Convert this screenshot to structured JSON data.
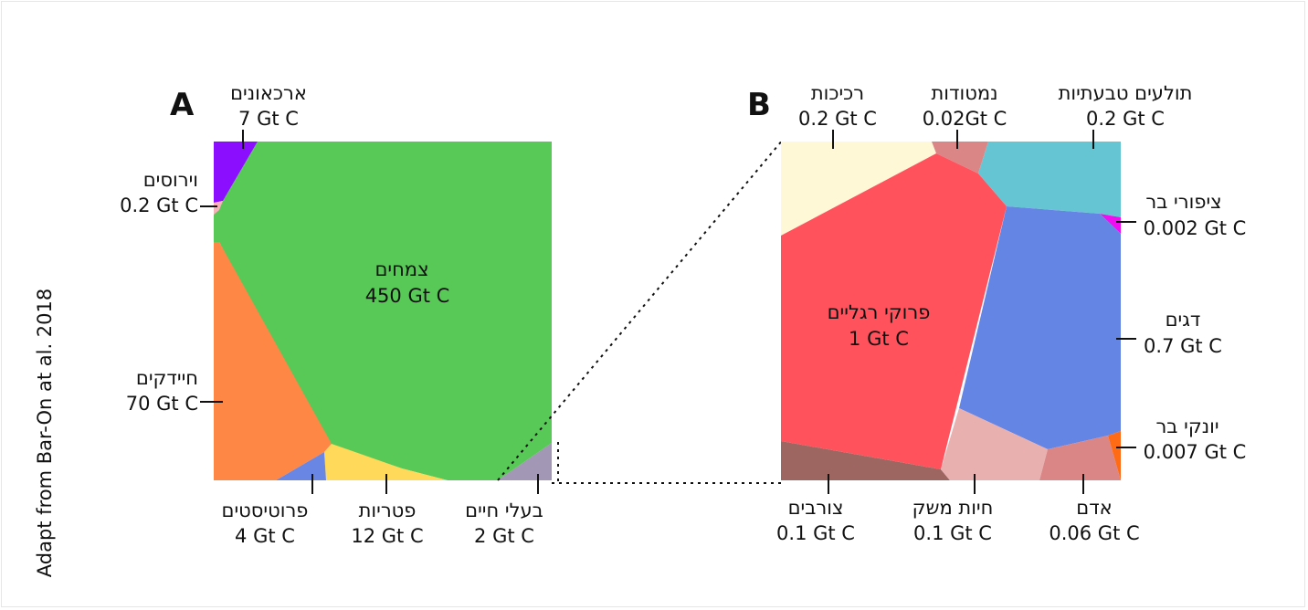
{
  "credit": "Adapt from Bar-On at al. 2018",
  "panel_a": {
    "letter": "A",
    "regions": [
      {
        "name": "צמחים",
        "value": "450 Gt C",
        "color": "#58c957"
      },
      {
        "name": "חיידקים",
        "value": "70 Gt C",
        "color": "#fe8745"
      },
      {
        "name": "פטריות",
        "value": "12 Gt C",
        "color": "#ffd95a"
      },
      {
        "name": "ארכאונים",
        "value": "7 Gt C",
        "color": "#8b0eff"
      },
      {
        "name": "פרוטיסטים",
        "value": "4 Gt C",
        "color": "#6a86e4"
      },
      {
        "name": "בעלי חיים",
        "value": "2 Gt C",
        "color": "#a297b4"
      },
      {
        "name": "וירוסים",
        "value": "0.2 Gt C",
        "color": "#f6b3b9"
      }
    ]
  },
  "panel_b": {
    "letter": "B",
    "regions": [
      {
        "name": "פרוקי רגליים",
        "value": "1 Gt C",
        "color": "#ff525d"
      },
      {
        "name": "דגים",
        "value": "0.7 Gt C",
        "color": "#6585e5"
      },
      {
        "name": "רכיכות",
        "value": "0.2 Gt C",
        "color": "#fff8d6"
      },
      {
        "name": "תולעים טבעתיות",
        "value": "0.2 Gt C",
        "color": "#66c5d3"
      },
      {
        "name": "צורבים",
        "value": "0.1 Gt C",
        "color": "#9e6661"
      },
      {
        "name": "חיות משק",
        "value": "0.1 Gt C",
        "color": "#e9b0b0"
      },
      {
        "name": "אדם",
        "value": "0.06 Gt C",
        "color": "#db8686"
      },
      {
        "name": "נמטודות",
        "value": "0.02Gt C",
        "color": "#db8686"
      },
      {
        "name": "יונקי בר",
        "value": "0.007 Gt C",
        "color": "#ff6a14"
      },
      {
        "name": "ציפורי בר",
        "value": "0.002 Gt C",
        "color": "#f00ef0"
      }
    ]
  }
}
